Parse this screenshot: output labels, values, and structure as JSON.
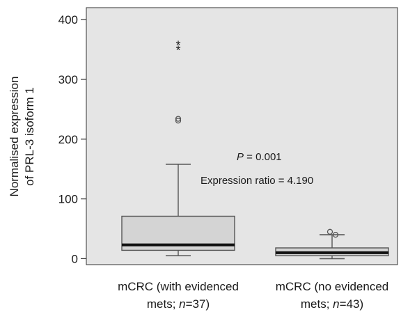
{
  "chart_data": {
    "type": "box",
    "title": "",
    "xlabel": "",
    "ylabel_lines": [
      "Normalised expression",
      "of PRL-3 isoform 1"
    ],
    "ylim": [
      -10,
      420
    ],
    "yticks": [
      0,
      100,
      200,
      300,
      400
    ],
    "ytick_labels": [
      "0",
      "100",
      "200",
      "300",
      "400"
    ],
    "grid": false,
    "categories": [
      {
        "label_line1": "mCRC (with evidenced",
        "label_line2_pre": "mets; ",
        "label_line2_n": "n",
        "label_line2_post": "=37)"
      },
      {
        "label_line1": "mCRC (no evidenced",
        "label_line2_pre": "mets; ",
        "label_line2_n": "n",
        "label_line2_post": "=43)"
      }
    ],
    "boxes": [
      {
        "min": 5,
        "q1": 14,
        "median": 23,
        "q3": 71,
        "max": 158,
        "outliers": [
          231,
          234
        ],
        "extremes": [
          352,
          360
        ]
      },
      {
        "min": 0,
        "q1": 5,
        "median": 10,
        "q3": 18,
        "max": 40,
        "outliers": [
          40,
          45
        ],
        "extremes": []
      }
    ],
    "annotations": {
      "p_label": "P",
      "p_value": " = 0.001",
      "ratio": "Expression ratio = 4.190"
    },
    "colors": {
      "plot_bg": "#e5e5e5",
      "box_fill": "#d4d4d4",
      "box_edge": "#555555",
      "median": "#111111"
    }
  }
}
